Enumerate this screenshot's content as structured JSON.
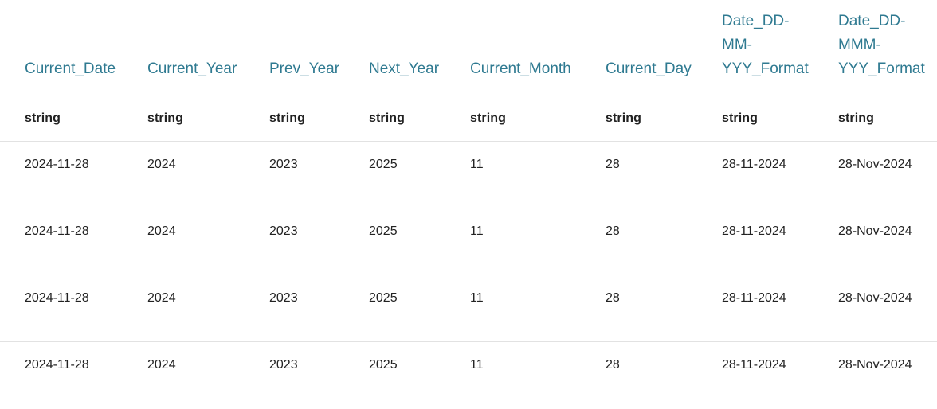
{
  "table": {
    "columns": [
      {
        "name": "Current_Date",
        "type": "string"
      },
      {
        "name": "Current_Year",
        "type": "string"
      },
      {
        "name": "Prev_Year",
        "type": "string"
      },
      {
        "name": "Next_Year",
        "type": "string"
      },
      {
        "name": "Current_Month",
        "type": "string"
      },
      {
        "name": "Current_Day",
        "type": "string"
      },
      {
        "name": "Date_DD-MM-YYY_Format",
        "type": "string"
      },
      {
        "name": "Date_DD-MMM-YYY_Format",
        "type": "string"
      }
    ],
    "rows": [
      [
        "2024-11-28",
        "2024",
        "2023",
        "2025",
        "11",
        "28",
        "28-11-2024",
        "28-Nov-2024"
      ],
      [
        "2024-11-28",
        "2024",
        "2023",
        "2025",
        "11",
        "28",
        "28-11-2024",
        "28-Nov-2024"
      ],
      [
        "2024-11-28",
        "2024",
        "2023",
        "2025",
        "11",
        "28",
        "28-11-2024",
        "28-Nov-2024"
      ],
      [
        "2024-11-28",
        "2024",
        "2023",
        "2025",
        "11",
        "28",
        "28-11-2024",
        "28-Nov-2024"
      ]
    ]
  }
}
